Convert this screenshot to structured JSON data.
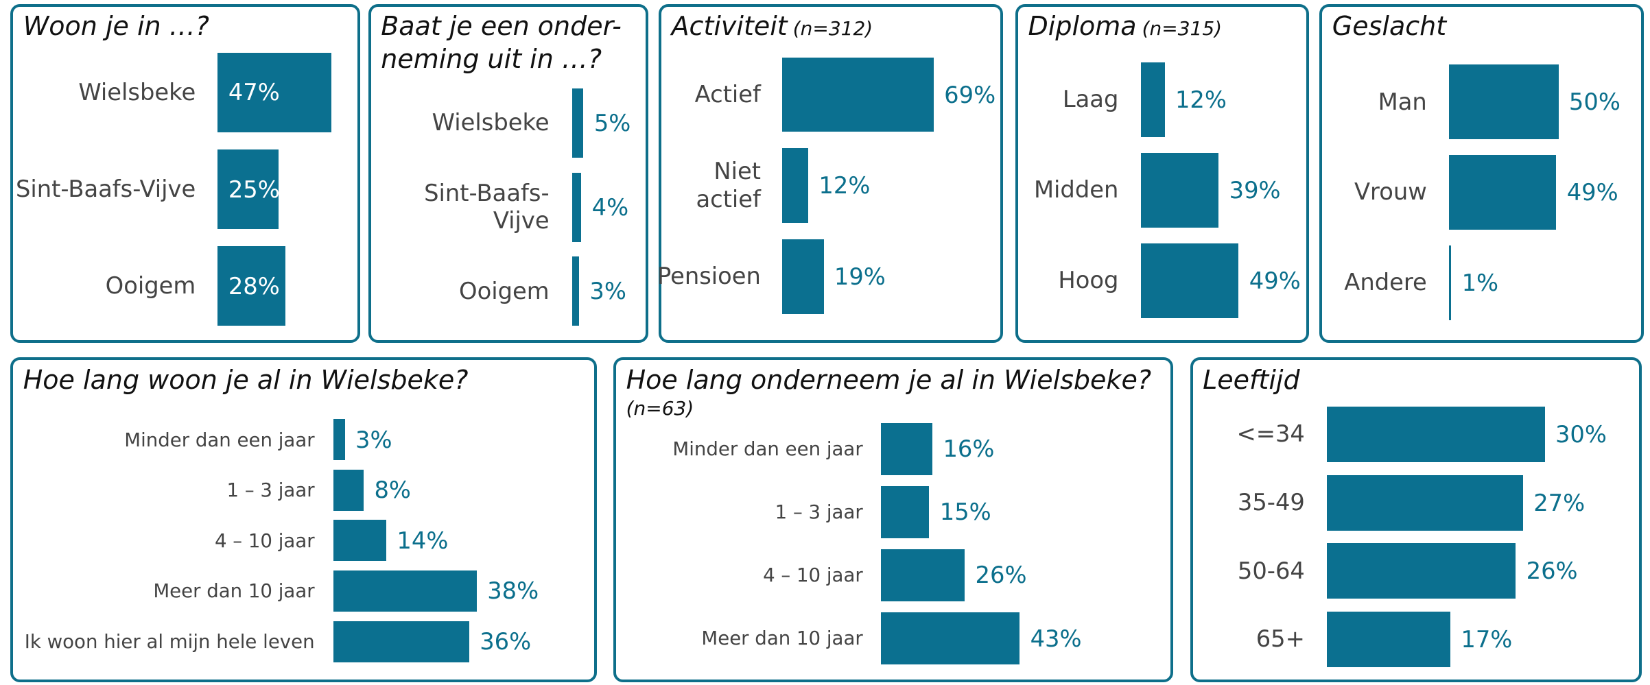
{
  "chart_data": [
    {
      "type": "hbar",
      "title": "Woon je in …?",
      "categories": [
        "Wielsbeke",
        "Sint-Baafs-Vijve",
        "Ooigem"
      ],
      "values": [
        47,
        25,
        28
      ],
      "value_labels": [
        "47%",
        "25%",
        "28%"
      ],
      "color": "#0b7090"
    },
    {
      "type": "hbar",
      "title": "Baat je een onder-neming uit in …?",
      "categories": [
        "Wielsbeke",
        "Sint-Baafs-Vijve",
        "Ooigem"
      ],
      "values": [
        5,
        4,
        3
      ],
      "value_labels": [
        "5%",
        "4%",
        "3%"
      ],
      "color": "#0b7090"
    },
    {
      "type": "hbar",
      "title": "Activiteit",
      "subtitle": "(n=312)",
      "categories": [
        "Actief",
        "Niet actief",
        "Pensioen"
      ],
      "values": [
        69,
        12,
        19
      ],
      "value_labels": [
        "69%",
        "12%",
        "19%"
      ],
      "color": "#0b7090"
    },
    {
      "type": "hbar",
      "title": "Diploma",
      "subtitle": "(n=315)",
      "categories": [
        "Laag",
        "Midden",
        "Hoog"
      ],
      "values": [
        12,
        39,
        49
      ],
      "value_labels": [
        "12%",
        "39%",
        "49%"
      ],
      "color": "#0b7090"
    },
    {
      "type": "hbar",
      "title": "Geslacht",
      "categories": [
        "Man",
        "Vrouw",
        "Andere"
      ],
      "values": [
        50,
        49,
        1
      ],
      "value_labels": [
        "50%",
        "49%",
        "1%"
      ],
      "color": "#0b7090"
    },
    {
      "type": "hbar",
      "title": "Hoe lang woon je al in Wielsbeke?",
      "categories": [
        "Minder dan een jaar",
        "1 – 3 jaar",
        "4 – 10 jaar",
        "Meer dan 10 jaar",
        "Ik woon hier al mijn hele leven"
      ],
      "values": [
        3,
        8,
        14,
        38,
        36
      ],
      "value_labels": [
        "3%",
        "8%",
        "14%",
        "38%",
        "36%"
      ],
      "color": "#0b7090"
    },
    {
      "type": "hbar",
      "title": "Hoe lang onderneem je al in Wielsbeke?",
      "subtitle": "(n=63)",
      "categories": [
        "Minder dan een jaar",
        "1 – 3 jaar",
        "4 – 10 jaar",
        "Meer dan 10 jaar"
      ],
      "values": [
        16,
        15,
        26,
        43
      ],
      "value_labels": [
        "16%",
        "15%",
        "26%",
        "43%"
      ],
      "color": "#0b7090"
    },
    {
      "type": "hbar",
      "title": "Leeftijd",
      "categories": [
        "<=34",
        "35-49",
        "50-64",
        "65+"
      ],
      "values": [
        30,
        27,
        26,
        17
      ],
      "value_labels": [
        "30%",
        "27%",
        "26%",
        "17%"
      ],
      "color": "#0b7090"
    }
  ]
}
